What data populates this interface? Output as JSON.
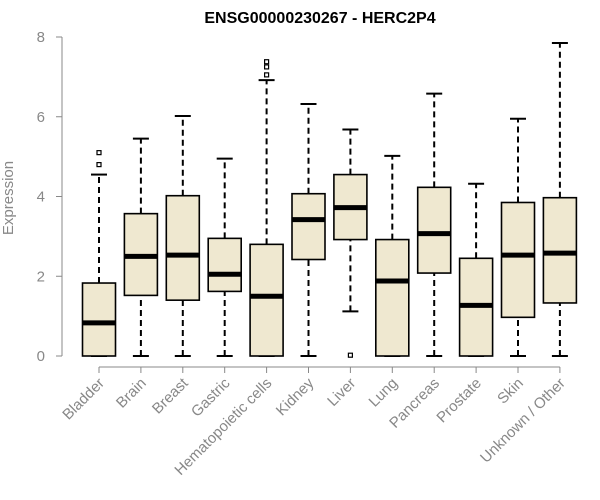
{
  "chart_data": {
    "type": "boxplot",
    "title": "ENSG00000230267 - HERC2P4",
    "xlabel": "",
    "ylabel": "Expression",
    "ylim": [
      0,
      8
    ],
    "yticks": [
      0,
      2,
      4,
      6,
      8
    ],
    "box_fill": "#efe8d0",
    "categories": [
      "Bladder",
      "Brain",
      "Breast",
      "Gastric",
      "Hematopoietic cells",
      "Kidney",
      "Liver",
      "Lung",
      "Pancreas",
      "Prostate",
      "Skin",
      "Unknown / Other"
    ],
    "boxes": [
      {
        "name": "Bladder",
        "min": 0,
        "q1": 0,
        "median": 0.83,
        "q3": 1.83,
        "max": 4.55,
        "outliers": [
          4.8,
          5.1
        ]
      },
      {
        "name": "Brain",
        "min": 0,
        "q1": 1.52,
        "median": 2.5,
        "q3": 3.57,
        "max": 5.45,
        "outliers": []
      },
      {
        "name": "Breast",
        "min": 0,
        "q1": 1.4,
        "median": 2.53,
        "q3": 4.02,
        "max": 6.02,
        "outliers": []
      },
      {
        "name": "Gastric",
        "min": 0,
        "q1": 1.62,
        "median": 2.05,
        "q3": 2.95,
        "max": 4.95,
        "outliers": []
      },
      {
        "name": "Hematopoietic cells",
        "min": 0,
        "q1": 0,
        "median": 1.5,
        "q3": 2.8,
        "max": 6.92,
        "outliers": [
          7.05,
          7.25,
          7.38
        ]
      },
      {
        "name": "Kidney",
        "min": 0,
        "q1": 2.42,
        "median": 3.42,
        "q3": 4.07,
        "max": 6.32,
        "outliers": []
      },
      {
        "name": "Liver",
        "min": 1.12,
        "q1": 2.92,
        "median": 3.72,
        "q3": 4.55,
        "max": 5.68,
        "outliers": [
          0.02
        ]
      },
      {
        "name": "Lung",
        "min": 0,
        "q1": 0,
        "median": 1.88,
        "q3": 2.92,
        "max": 5.02,
        "outliers": []
      },
      {
        "name": "Pancreas",
        "min": 0,
        "q1": 2.08,
        "median": 3.07,
        "q3": 4.23,
        "max": 6.58,
        "outliers": []
      },
      {
        "name": "Prostate",
        "min": 0,
        "q1": 0,
        "median": 1.27,
        "q3": 2.45,
        "max": 4.32,
        "outliers": []
      },
      {
        "name": "Skin",
        "min": 0,
        "q1": 0.97,
        "median": 2.53,
        "q3": 3.85,
        "max": 5.95,
        "outliers": []
      },
      {
        "name": "Unknown / Other",
        "min": 0,
        "q1": 1.33,
        "median": 2.58,
        "q3": 3.97,
        "max": 7.85,
        "outliers": []
      }
    ]
  }
}
